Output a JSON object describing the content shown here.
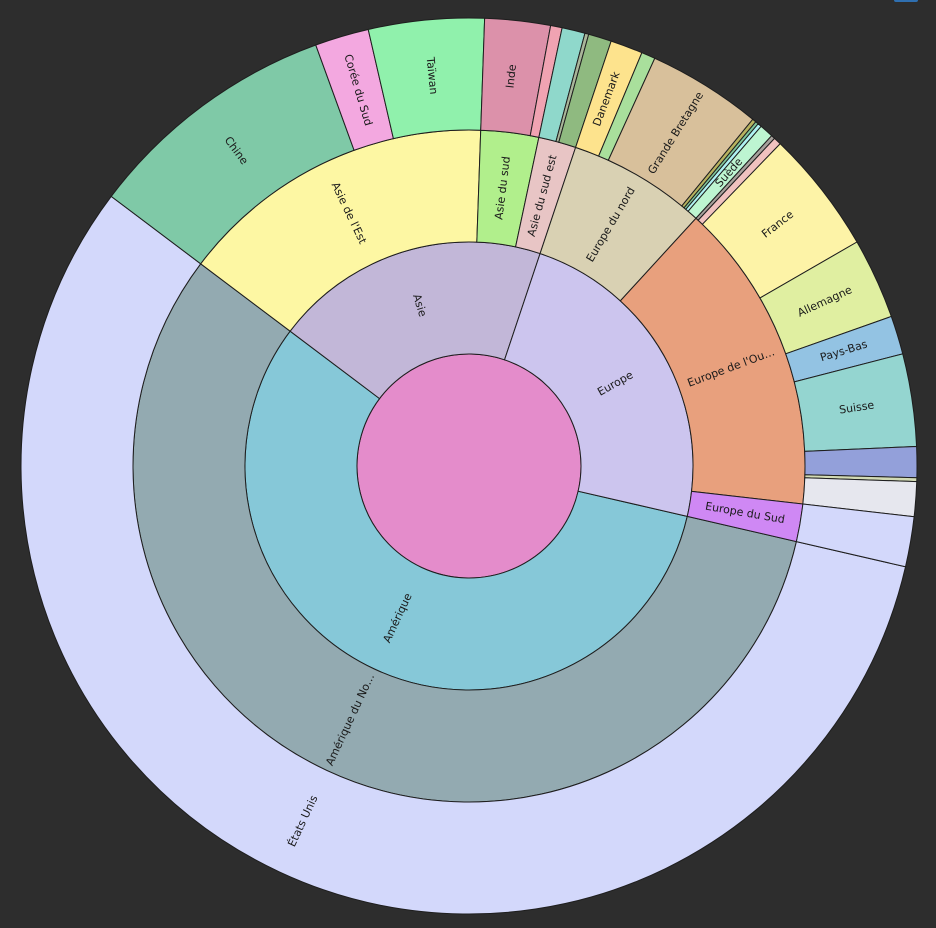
{
  "chart_data": {
    "type": "sunburst",
    "center_color": "#e48ccb",
    "stroke_color": "#1e1e1e",
    "nodes": [
      {
        "name": "Amérique",
        "value": 204,
        "color": "#86c8d8",
        "children": [
          {
            "name": "Amérique du Nord",
            "value": 204,
            "color": "#93aab1",
            "children": [
              {
                "name": "États Unis",
                "value": 204,
                "color": "#d3d8fb"
              }
            ]
          }
        ]
      },
      {
        "name": "Asie",
        "value": 71.5,
        "color": "#c2b7d8",
        "children": [
          {
            "name": "Asie de l'Est",
            "value": 55,
            "color": "#fdf7a3",
            "children": [
              {
                "name": "Chine",
                "value": 33,
                "color": "#7fc9a7"
              },
              {
                "name": "Corée du Sud",
                "value": 7,
                "color": "#f3a8e0"
              },
              {
                "name": "Taïwan",
                "value": 15,
                "color": "#90f1ac"
              }
            ]
          },
          {
            "name": "Asie du sud",
            "value": 10,
            "color": "#b1ef8c",
            "children": [
              {
                "name": "Inde",
                "value": 8.5,
                "color": "#dc91aa"
              },
              {
                "name": "",
                "value": 1.5,
                "color": "#f0a3b2"
              }
            ]
          },
          {
            "name": "Asie du sud est",
            "value": 6.5,
            "color": "#e8c5c5",
            "children": [
              {
                "name": "",
                "value": 3,
                "color": "#8fd8cb"
              },
              {
                "name": "",
                "value": 0.5,
                "color": "#a9b69a"
              },
              {
                "name": "",
                "value": 3,
                "color": "#8fba80"
              }
            ]
          }
        ]
      },
      {
        "name": "Europe",
        "value": 84.5,
        "color": "#ccc5ee",
        "children": [
          {
            "name": "Europe du nord",
            "value": 24,
            "color": "#d9d1b3",
            "children": [
              {
                "name": "Danemark",
                "value": 4.2,
                "color": "#fde38d"
              },
              {
                "name": "",
                "value": 1.8,
                "color": "#a9df9c"
              },
              {
                "name": "Grande Bretagne",
                "value": 14.8,
                "color": "#d8c09b"
              },
              {
                "name": "",
                "value": 0.5,
                "color": "#b7b25f"
              },
              {
                "name": "",
                "value": 0.4,
                "color": "#7fc69a"
              },
              {
                "name": "",
                "value": 0.5,
                "color": "#aff2f2"
              },
              {
                "name": "Suède",
                "value": 1.8,
                "color": "#bdf5d1"
              }
            ]
          },
          {
            "name": "Europe de l'Ouest",
            "value": 54,
            "color": "#e8a07d",
            "children": [
              {
                "name": "",
                "value": 0.5,
                "color": "#a7a19c"
              },
              {
                "name": "",
                "value": 1.0,
                "color": "#f0c2bf"
              },
              {
                "name": "France",
                "value": 16,
                "color": "#fdf3a7"
              },
              {
                "name": "Allemagne",
                "value": 10.5,
                "color": "#e0efa1"
              },
              {
                "name": "Pays-Bas",
                "value": 5,
                "color": "#93c3e3"
              },
              {
                "name": "Suisse",
                "value": 12,
                "color": "#94d5d0"
              },
              {
                "name": "",
                "value": 4,
                "color": "#93a0da"
              },
              {
                "name": "",
                "value": 0.5,
                "color": "#d2dab4"
              },
              {
                "name": "",
                "value": 4.5,
                "color": "#e6e7ee"
              }
            ]
          },
          {
            "name": "Europe du Sud",
            "value": 6.5,
            "color": "#cf88f4",
            "children": [
              {
                "name": "",
                "value": 6.5,
                "color": "#d3d8fb"
              }
            ]
          }
        ]
      }
    ]
  }
}
